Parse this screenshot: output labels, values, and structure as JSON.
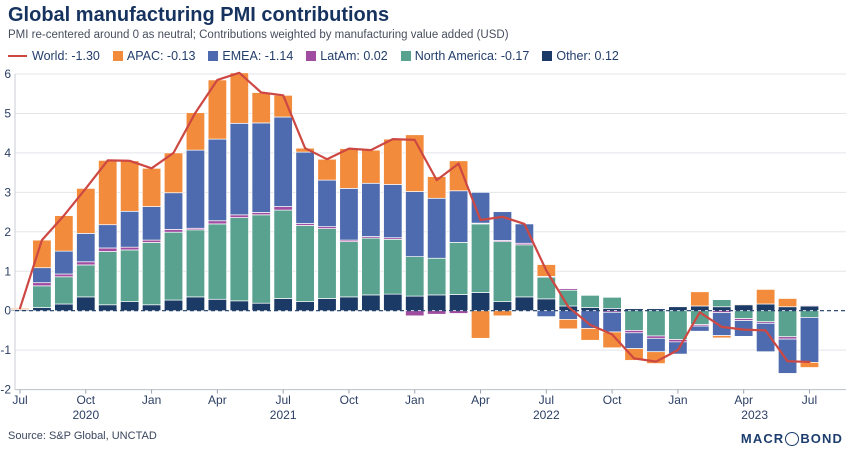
{
  "header": {
    "title": "Global manufacturing PMI contributions",
    "subtitle": "PMI re-centered around 0 as neutral; Contributions weighted by manufacturing value added (USD)"
  },
  "legend": [
    {
      "label": "World",
      "value": "-1.30",
      "color": "#ce4843",
      "swatch": "line"
    },
    {
      "label": "APAC",
      "value": "-0.13",
      "color": "#f28c3c",
      "swatch": "square"
    },
    {
      "label": "EMEA",
      "value": "-1.14",
      "color": "#4f6baf",
      "swatch": "square"
    },
    {
      "label": "LatAm",
      "value": "0.02",
      "color": "#a04ca0",
      "swatch": "square"
    },
    {
      "label": "North America",
      "value": "-0.17",
      "color": "#58a28f",
      "swatch": "square"
    },
    {
      "label": "Other",
      "value": "0.12",
      "color": "#1b3a66",
      "swatch": "square"
    }
  ],
  "chart_data": {
    "type": "stacked-bar-with-line",
    "title": "Global manufacturing PMI contributions",
    "ylim": [
      -2,
      6
    ],
    "yticks": [
      -2,
      -1,
      0,
      1,
      2,
      3,
      4,
      5,
      6
    ],
    "grid": true,
    "legend_position": "top",
    "x": [
      "2020-07",
      "2020-08",
      "2020-09",
      "2020-10",
      "2020-11",
      "2020-12",
      "2021-01",
      "2021-02",
      "2021-03",
      "2021-04",
      "2021-05",
      "2021-06",
      "2021-07",
      "2021-08",
      "2021-09",
      "2021-10",
      "2021-11",
      "2021-12",
      "2022-01",
      "2022-02",
      "2022-03",
      "2022-04",
      "2022-05",
      "2022-06",
      "2022-07",
      "2022-08",
      "2022-09",
      "2022-10",
      "2022-11",
      "2022-12",
      "2023-01",
      "2023-02",
      "2023-03",
      "2023-04",
      "2023-05",
      "2023-06",
      "2023-07"
    ],
    "series": [
      {
        "name": "Other",
        "color": "#1b3a66",
        "values": [
          0.03,
          0.08,
          0.17,
          0.35,
          0.15,
          0.23,
          0.15,
          0.27,
          0.35,
          0.29,
          0.25,
          0.19,
          0.31,
          0.23,
          0.31,
          0.35,
          0.4,
          0.42,
          0.37,
          0.4,
          0.41,
          0.46,
          0.23,
          0.35,
          0.3,
          0.12,
          0.08,
          0.06,
          0.05,
          0.05,
          0.1,
          0.12,
          0.1,
          0.15,
          0.17,
          0.1,
          0.12
        ]
      },
      {
        "name": "North America",
        "color": "#58a28f",
        "values": [
          0.0,
          0.55,
          0.69,
          0.81,
          1.35,
          1.31,
          1.58,
          1.72,
          1.7,
          1.91,
          2.11,
          2.24,
          2.24,
          1.93,
          1.77,
          1.4,
          1.44,
          1.39,
          1.0,
          0.93,
          1.32,
          1.74,
          1.52,
          1.32,
          0.55,
          0.4,
          0.31,
          0.28,
          -0.5,
          -0.64,
          -0.73,
          -0.35,
          0.18,
          -0.2,
          -0.28,
          -0.66,
          -0.17
        ]
      },
      {
        "name": "LatAm",
        "color": "#a04ca0",
        "values": [
          0.0,
          0.08,
          0.07,
          0.08,
          0.09,
          0.07,
          0.06,
          0.07,
          0.04,
          0.08,
          0.07,
          0.06,
          0.09,
          0.05,
          0.05,
          0.04,
          0.04,
          0.04,
          -0.13,
          -0.09,
          -0.07,
          0.02,
          0.03,
          0.04,
          0.02,
          0.04,
          0.0,
          -0.04,
          -0.06,
          -0.06,
          -0.06,
          -0.04,
          -0.05,
          -0.05,
          -0.04,
          -0.06,
          0.02
        ]
      },
      {
        "name": "EMEA",
        "color": "#4f6baf",
        "values": [
          0.0,
          0.38,
          0.58,
          0.72,
          0.59,
          0.91,
          0.85,
          0.93,
          1.98,
          2.07,
          2.32,
          2.27,
          2.27,
          1.81,
          1.18,
          1.31,
          1.35,
          1.35,
          1.65,
          1.52,
          1.31,
          0.78,
          0.73,
          0.49,
          -0.15,
          -0.22,
          -0.45,
          -0.5,
          -0.4,
          -0.34,
          -0.31,
          -0.13,
          -0.58,
          -0.4,
          -0.72,
          -0.87,
          -1.14
        ]
      },
      {
        "name": "APAC",
        "color": "#f28c3c",
        "values": [
          0.03,
          0.7,
          0.9,
          1.14,
          1.63,
          1.28,
          0.97,
          1.01,
          0.95,
          1.5,
          1.28,
          0.77,
          0.55,
          0.1,
          0.53,
          1.01,
          0.84,
          1.15,
          1.44,
          0.55,
          0.76,
          -0.7,
          -0.13,
          0.0,
          0.3,
          -0.24,
          -0.3,
          -0.4,
          -0.3,
          -0.3,
          0.0,
          0.36,
          -0.06,
          0.02,
          0.37,
          0.21,
          -0.13
        ]
      }
    ],
    "line": {
      "name": "World",
      "color": "#ce4843",
      "values": [
        0.06,
        1.79,
        2.41,
        3.1,
        3.81,
        3.8,
        3.61,
        4.0,
        5.02,
        5.85,
        6.03,
        5.53,
        5.46,
        4.12,
        3.84,
        4.11,
        4.07,
        4.35,
        4.33,
        3.31,
        3.73,
        2.3,
        2.38,
        2.2,
        1.02,
        0.1,
        -0.36,
        -0.6,
        -1.21,
        -1.29,
        -1.0,
        -0.04,
        -0.41,
        -0.48,
        -0.5,
        -1.28,
        -1.3
      ]
    },
    "xticks": [
      {
        "m": 0,
        "label": "Jul"
      },
      {
        "m": 3,
        "label": "Oct"
      },
      {
        "m": 6,
        "label": "Jan"
      },
      {
        "m": 9,
        "label": "Apr"
      },
      {
        "m": 12,
        "label": "Jul"
      },
      {
        "m": 15,
        "label": "Oct"
      },
      {
        "m": 18,
        "label": "Jan"
      },
      {
        "m": 21,
        "label": "Apr"
      },
      {
        "m": 24,
        "label": "Jul"
      },
      {
        "m": 27,
        "label": "Oct"
      },
      {
        "m": 30,
        "label": "Jan"
      },
      {
        "m": 33,
        "label": "Apr"
      },
      {
        "m": 36,
        "label": "Jul"
      }
    ],
    "year_labels": [
      {
        "pos": 3,
        "label": "2020"
      },
      {
        "pos": 12,
        "label": "2021"
      },
      {
        "pos": 24,
        "label": "2022"
      },
      {
        "pos": 33.5,
        "label": "2023"
      }
    ]
  },
  "footer": {
    "source": "Source: S&P Global, UNCTAD",
    "logo": {
      "pre": "MACR",
      "post": "BOND"
    }
  }
}
